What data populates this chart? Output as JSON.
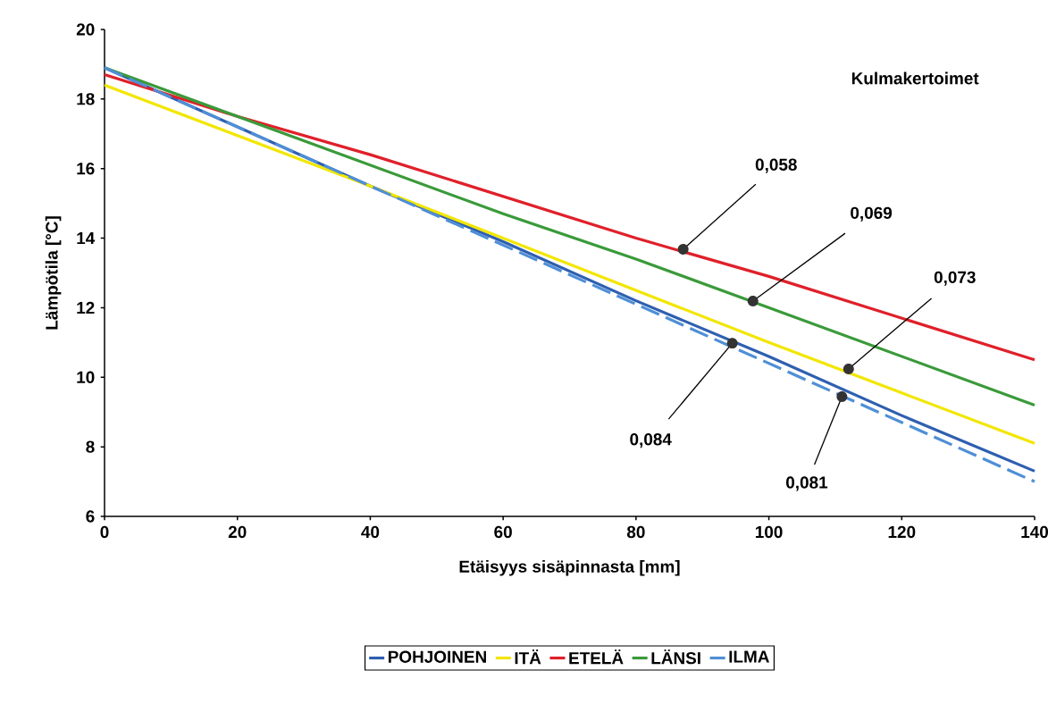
{
  "chart_data": {
    "type": "line",
    "xlabel": "Etäisyys sisäpinnasta [mm]",
    "ylabel": "Lämpötila [°C]",
    "x": [
      0,
      20,
      40,
      60,
      80,
      100,
      120,
      140
    ],
    "series": [
      {
        "name": "POHJOINEN",
        "color": "#2e5fb0",
        "values": [
          18.9,
          17.2,
          15.5,
          13.9,
          12.2,
          10.6,
          8.9,
          7.3
        ]
      },
      {
        "name": "ITÄ",
        "color": "#f2e600",
        "values": [
          18.4,
          16.95,
          15.5,
          14.0,
          12.5,
          11.0,
          9.55,
          8.1
        ]
      },
      {
        "name": "ETELÄ",
        "color": "#e0202a",
        "values": [
          18.7,
          17.5,
          16.4,
          15.2,
          14.0,
          12.9,
          11.7,
          10.5
        ]
      },
      {
        "name": "LÄNSI",
        "color": "#3a9a3a",
        "values": [
          18.9,
          17.5,
          16.1,
          14.7,
          13.4,
          12.0,
          10.6,
          9.2
        ]
      },
      {
        "name": "ILMA",
        "color": "#4f8fd6",
        "line_style": "dashed",
        "values": [
          18.9,
          17.2,
          15.5,
          13.8,
          12.1,
          10.4,
          8.7,
          7.0
        ]
      }
    ],
    "xlim": [
      0,
      140
    ],
    "ylim": [
      6,
      20
    ],
    "xticks": [
      0,
      20,
      40,
      60,
      80,
      100,
      120,
      140
    ],
    "yticks": [
      6,
      8,
      10,
      12,
      14,
      16,
      18,
      20
    ],
    "grid": false,
    "legend": "bottom",
    "marker": "none",
    "annotations": [
      "Kulmakertoimet",
      {
        "text": "0,058",
        "x": 87.1,
        "y": 13.68
      },
      {
        "text": "0,069",
        "x": 97.6,
        "y": 12.19
      },
      {
        "text": "0,073",
        "x": 112,
        "y": 10.24
      },
      {
        "text": "0,084",
        "x": 94.5,
        "y": 10.98
      },
      {
        "text": "0,081",
        "x": 111,
        "y": 9.44
      }
    ]
  }
}
